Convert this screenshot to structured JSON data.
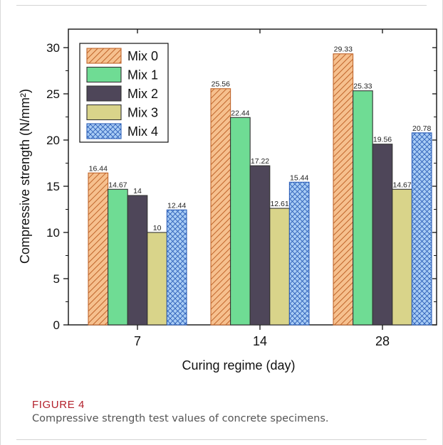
{
  "chart_data": {
    "type": "bar",
    "categories": [
      "7",
      "14",
      "28"
    ],
    "series": [
      {
        "name": "Mix 0",
        "values": [
          16.44,
          25.56,
          29.33
        ],
        "labels": [
          "16.44",
          "25.56",
          "29.33"
        ],
        "color": "#f6c08e",
        "stroke": "#c0652b",
        "pattern": "diagonal-hatch"
      },
      {
        "name": "Mix 1",
        "values": [
          14.67,
          22.44,
          25.33
        ],
        "labels": [
          "14.67",
          "22.44",
          "25.33"
        ],
        "color": "#6fdc94",
        "stroke": "#333333",
        "pattern": "solid"
      },
      {
        "name": "Mix 2",
        "values": [
          14,
          17.22,
          19.56
        ],
        "labels": [
          "14",
          "17.22",
          "19.56"
        ],
        "color": "#4e4659",
        "stroke": "#333333",
        "pattern": "solid"
      },
      {
        "name": "Mix 3",
        "values": [
          10,
          12.61,
          14.67
        ],
        "labels": [
          "10",
          "12.61",
          "14.67"
        ],
        "color": "#d9d48a",
        "stroke": "#333333",
        "pattern": "solid"
      },
      {
        "name": "Mix 4",
        "values": [
          12.44,
          15.44,
          20.78
        ],
        "labels": [
          "12.44",
          "15.44",
          "20.78"
        ],
        "color": "#a9cdf5",
        "stroke": "#2c5fb8",
        "pattern": "cross-hatch"
      }
    ],
    "xlabel": "Curing regime (day)",
    "ylabel": "Compressive strength (N/mm²)",
    "ylim": [
      0,
      32
    ],
    "yticks": [
      "0",
      "5",
      "10",
      "15",
      "20",
      "25",
      "30"
    ],
    "legend": "top-left",
    "grid": false
  },
  "caption": {
    "label": "FIGURE 4",
    "text": "Compressive strength test values of concrete specimens."
  }
}
